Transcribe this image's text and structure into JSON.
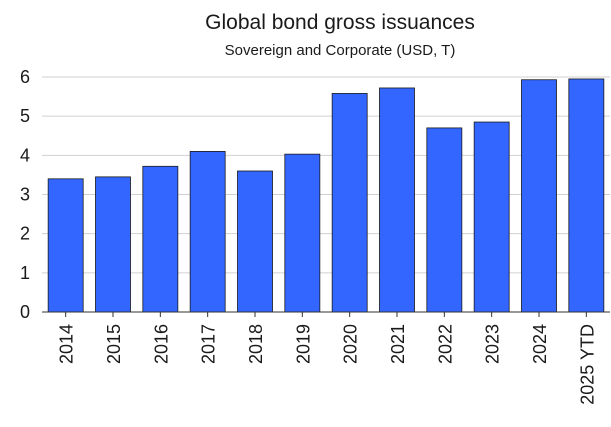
{
  "chart_data": {
    "type": "bar",
    "title": "Global bond gross issuances",
    "subtitle": "Sovereign and Corporate (USD, T)",
    "xlabel": "",
    "ylabel": "",
    "categories": [
      "2014",
      "2015",
      "2016",
      "2017",
      "2018",
      "2019",
      "2020",
      "2021",
      "2022",
      "2023",
      "2024",
      "2025 YTD"
    ],
    "values": [
      3.4,
      3.45,
      3.72,
      4.1,
      3.6,
      4.03,
      5.58,
      5.72,
      4.7,
      4.85,
      5.93,
      5.95
    ],
    "ylim": [
      0,
      6
    ],
    "yticks": [
      "0",
      "1",
      "2",
      "3",
      "4",
      "5",
      "6"
    ],
    "grid": true,
    "colors": {
      "bar": "#3366ff"
    }
  }
}
